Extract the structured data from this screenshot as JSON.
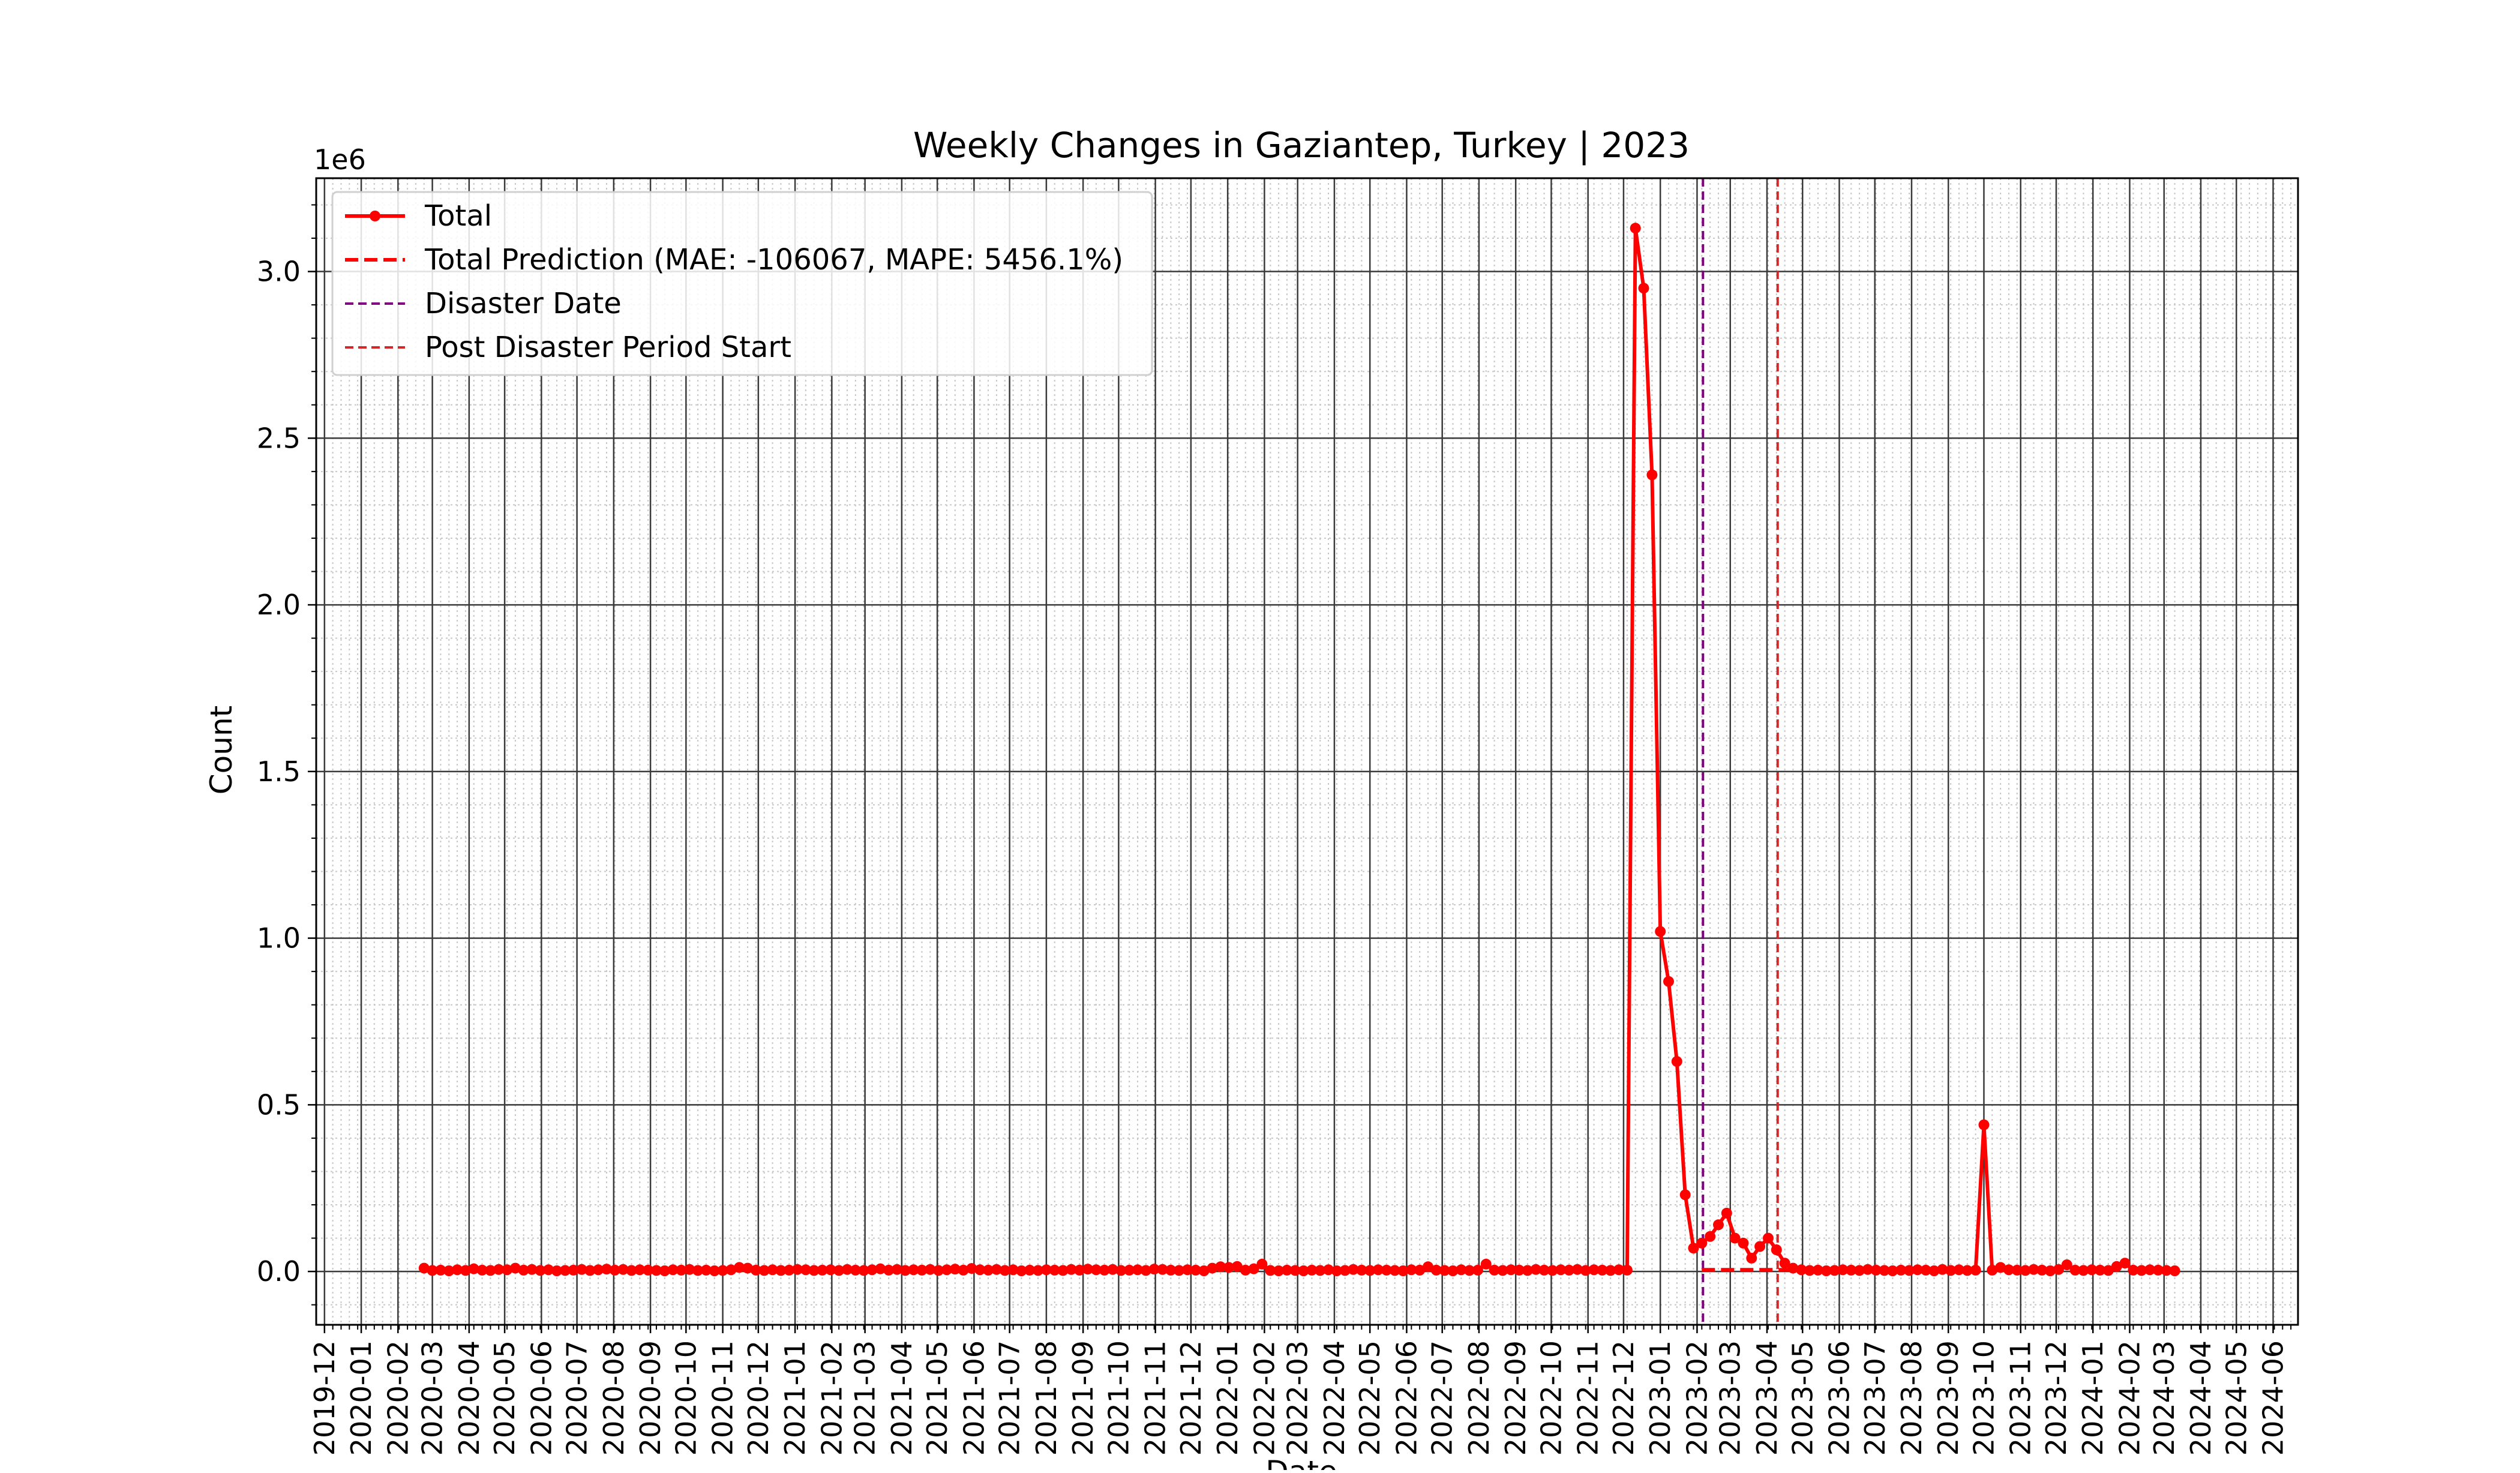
{
  "chart_data": {
    "type": "line",
    "title": "Weekly Changes in Gaziantep, Turkey | 2023",
    "xlabel": "Date",
    "ylabel": "Count",
    "y_offset_text": "1e6",
    "y_scale_factor": 1000000,
    "xlim": [
      "2019-11-24",
      "2024-06-22"
    ],
    "ylim": [
      -160000,
      3280000
    ],
    "grid": true,
    "minor_grid": true,
    "legend_position": "top-left",
    "x_ticks": [
      "2019-12",
      "2020-01",
      "2020-02",
      "2020-03",
      "2020-04",
      "2020-05",
      "2020-06",
      "2020-07",
      "2020-08",
      "2020-09",
      "2020-10",
      "2020-11",
      "2020-12",
      "2021-01",
      "2021-02",
      "2021-03",
      "2021-04",
      "2021-05",
      "2021-06",
      "2021-07",
      "2021-08",
      "2021-09",
      "2021-10",
      "2021-11",
      "2021-12",
      "2022-01",
      "2022-02",
      "2022-03",
      "2022-04",
      "2022-05",
      "2022-06",
      "2022-07",
      "2022-08",
      "2022-09",
      "2022-10",
      "2022-11",
      "2022-12",
      "2023-01",
      "2023-02",
      "2023-03",
      "2023-04",
      "2023-05",
      "2023-06",
      "2023-07",
      "2023-08",
      "2023-09",
      "2023-10",
      "2023-11",
      "2023-12",
      "2024-01",
      "2024-02",
      "2024-03",
      "2024-04",
      "2024-05",
      "2024-06"
    ],
    "y_ticks": [
      {
        "value": 0,
        "label": "0.0"
      },
      {
        "value": 500000,
        "label": "0.5"
      },
      {
        "value": 1000000,
        "label": "1.0"
      },
      {
        "value": 1500000,
        "label": "1.5"
      },
      {
        "value": 2000000,
        "label": "2.0"
      },
      {
        "value": 2500000,
        "label": "2.5"
      },
      {
        "value": 3000000,
        "label": "3.0"
      }
    ],
    "series": [
      {
        "name": "Total",
        "color": "#ff0000",
        "style": "solid-marker",
        "start_date": "2020-02-23",
        "step_days": 7,
        "values": [
          10000,
          3000,
          4000,
          2000,
          5000,
          3000,
          8000,
          4000,
          3000,
          6000,
          5000,
          10000,
          4000,
          6000,
          3000,
          5000,
          2000,
          3000,
          4000,
          6000,
          3000,
          5000,
          7000,
          4000,
          6000,
          3000,
          5000,
          4000,
          3000,
          2000,
          5000,
          4000,
          6000,
          3000,
          4000,
          2000,
          3000,
          5000,
          12000,
          10000,
          4000,
          3000,
          5000,
          3000,
          4000,
          6000,
          5000,
          3000,
          4000,
          5000,
          3000,
          6000,
          4000,
          3000,
          5000,
          8000,
          4000,
          6000,
          3000,
          5000,
          4000,
          6000,
          3000,
          5000,
          7000,
          4000,
          9000,
          5000,
          4000,
          6000,
          3000,
          5000,
          2000,
          4000,
          3000,
          5000,
          4000,
          3000,
          6000,
          4000,
          7000,
          5000,
          4000,
          6000,
          3000,
          4000,
          5000,
          3000,
          7000,
          6000,
          4000,
          3000,
          5000,
          4000,
          2000,
          10000,
          14000,
          12000,
          15000,
          4000,
          8000,
          22000,
          3000,
          2000,
          4000,
          3000,
          2000,
          4000,
          3000,
          5000,
          2000,
          3000,
          6000,
          4000,
          3000,
          5000,
          4000,
          3000,
          2000,
          5000,
          4000,
          14000,
          4000,
          3000,
          2000,
          5000,
          3000,
          4000,
          22000,
          4000,
          3000,
          5000,
          4000,
          3000,
          6000,
          4000,
          3000,
          5000,
          4000,
          6000,
          3000,
          5000,
          4000,
          3000,
          5000,
          4000,
          3130000,
          2950000,
          2390000,
          1020000,
          870000,
          630000,
          230000,
          70000,
          85000,
          105000,
          140000,
          175000,
          100000,
          85000,
          40000,
          75000,
          100000,
          65000,
          25000,
          10000,
          5000,
          3000,
          4000,
          2000,
          3000,
          5000,
          4000,
          3000,
          6000,
          4000,
          3000,
          2000,
          4000,
          3000,
          5000,
          4000,
          2000,
          6000,
          3000,
          5000,
          3000,
          4000,
          440000,
          4000,
          12000,
          5000,
          4000,
          3000,
          6000,
          4000,
          2000,
          6000,
          20000,
          4000,
          3000,
          5000,
          4000,
          3000,
          15000,
          25000,
          4000,
          3000,
          5000,
          4000,
          3000,
          2000
        ]
      },
      {
        "name": "Total Prediction (MAE: -106067, MAPE: 5456.1%)",
        "color": "#ff0000",
        "style": "dashed",
        "start_date": "2023-02-05",
        "step_days": 7,
        "values": [
          5000,
          5000,
          5000,
          5000,
          5000,
          5000,
          5000,
          5000,
          5000,
          5000,
          5000,
          5000,
          5000
        ]
      }
    ],
    "vlines": [
      {
        "name": "Disaster Date",
        "date": "2023-02-06",
        "color": "#800080"
      },
      {
        "name": "Post Disaster Period Start",
        "date": "2023-04-10",
        "color": "#d62728"
      }
    ]
  }
}
